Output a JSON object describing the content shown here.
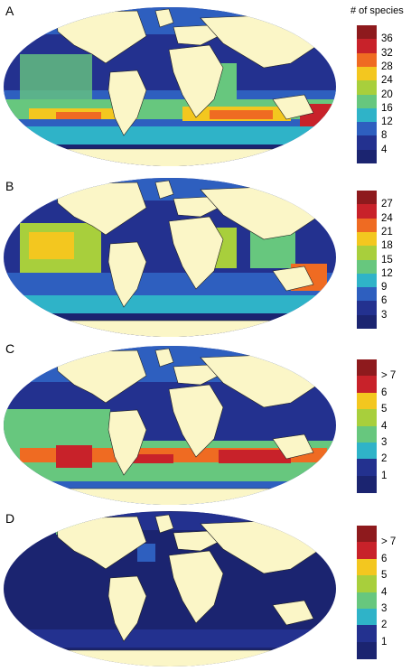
{
  "legend_title": "# of species",
  "palette": [
    "#1b2470",
    "#23318f",
    "#2e5fbf",
    "#2fb3c8",
    "#67c77e",
    "#a8cf3c",
    "#f3c71f",
    "#ef6b22",
    "#c8222a",
    "#8e1a1d"
  ],
  "land_color": "#fbf6c7",
  "panels": [
    {
      "label": "A",
      "ticks": [
        "36",
        "32",
        "28",
        "24",
        "20",
        "16",
        "12",
        "8",
        "4"
      ]
    },
    {
      "label": "B",
      "ticks": [
        "27",
        "24",
        "21",
        "18",
        "15",
        "12",
        "9",
        "6",
        "3"
      ]
    },
    {
      "label": "C",
      "ticks": [
        "> 7",
        "6",
        "5",
        "4",
        "3",
        "2",
        "1"
      ]
    },
    {
      "label": "D",
      "ticks": [
        "> 7",
        "6",
        "5",
        "4",
        "3",
        "2",
        "1"
      ]
    }
  ]
}
